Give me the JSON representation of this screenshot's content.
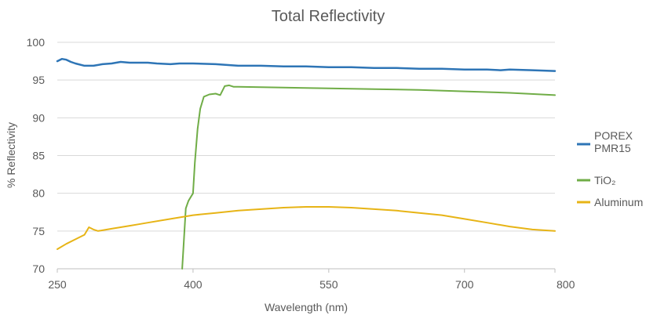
{
  "chart_data": {
    "type": "line",
    "title": "Total Reflectivity",
    "xlabel": "Wavelength (nm)",
    "ylabel": "% Reflectivity",
    "xlim": [
      250,
      800
    ],
    "ylim": [
      70,
      100
    ],
    "x_ticks": [
      "250",
      "400",
      "550",
      "700",
      "800"
    ],
    "y_ticks": [
      "70",
      "75",
      "80",
      "85",
      "90",
      "95",
      "100"
    ],
    "grid": "horizontal",
    "legend_position": "right",
    "series": [
      {
        "name": "POREX PMR15",
        "color": "#2e75b6",
        "x": [
          250,
          255,
          260,
          265,
          270,
          280,
          290,
          300,
          310,
          320,
          330,
          340,
          350,
          360,
          375,
          385,
          400,
          425,
          450,
          475,
          500,
          525,
          550,
          575,
          600,
          625,
          650,
          675,
          700,
          725,
          740,
          750,
          775,
          800
        ],
        "y": [
          97.5,
          97.8,
          97.7,
          97.4,
          97.2,
          96.9,
          96.9,
          97.1,
          97.2,
          97.4,
          97.3,
          97.3,
          97.3,
          97.2,
          97.1,
          97.2,
          97.2,
          97.1,
          96.9,
          96.9,
          96.8,
          96.8,
          96.7,
          96.7,
          96.6,
          96.6,
          96.5,
          96.5,
          96.4,
          96.4,
          96.3,
          96.4,
          96.3,
          96.2
        ]
      },
      {
        "name": "TiO₂",
        "color": "#70ad47",
        "x": [
          388,
          390,
          392,
          395,
          400,
          402,
          405,
          408,
          412,
          418,
          425,
          430,
          435,
          440,
          445,
          450,
          500,
          550,
          600,
          650,
          700,
          750,
          800
        ],
        "y": [
          70.0,
          74.0,
          78.0,
          79.0,
          80.0,
          84.0,
          88.5,
          91.2,
          92.8,
          93.1,
          93.2,
          93.0,
          94.2,
          94.3,
          94.1,
          94.1,
          94.0,
          93.9,
          93.8,
          93.7,
          93.5,
          93.3,
          93.0
        ]
      },
      {
        "name": "Aluminum",
        "color": "#e7b416",
        "x": [
          250,
          260,
          270,
          280,
          285,
          290,
          295,
          300,
          310,
          320,
          330,
          340,
          350,
          375,
          400,
          425,
          450,
          475,
          500,
          525,
          550,
          575,
          600,
          625,
          650,
          675,
          700,
          725,
          750,
          775,
          800
        ],
        "y": [
          72.6,
          73.3,
          73.9,
          74.5,
          75.5,
          75.2,
          75.0,
          75.1,
          75.3,
          75.5,
          75.7,
          75.9,
          76.1,
          76.6,
          77.1,
          77.4,
          77.7,
          77.9,
          78.1,
          78.2,
          78.2,
          78.1,
          77.9,
          77.7,
          77.4,
          77.1,
          76.6,
          76.1,
          75.6,
          75.2,
          75.0
        ]
      }
    ]
  }
}
